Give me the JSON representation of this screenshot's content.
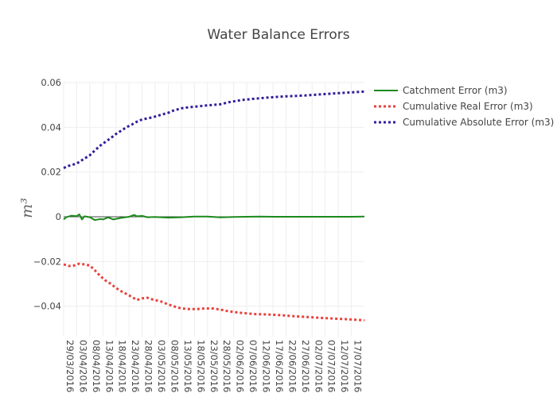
{
  "chart_data": {
    "type": "line",
    "title": "Water Balance Errors",
    "xlabel": "",
    "ylabel": "m³",
    "ylim": [
      -0.05,
      0.06
    ],
    "yticks": [
      -0.04,
      -0.02,
      0,
      0.02,
      0.04,
      0.06
    ],
    "ytick_labels": [
      "−0.04",
      "−0.02",
      "0",
      "0.02",
      "0.04",
      "0.06"
    ],
    "x_start": "2016-03-29",
    "x_end": "2016-07-22",
    "xticks": [
      "2016-03-29",
      "2016-04-03",
      "2016-04-08",
      "2016-04-13",
      "2016-04-18",
      "2016-04-23",
      "2016-04-28",
      "2016-05-03",
      "2016-05-08",
      "2016-05-13",
      "2016-05-18",
      "2016-05-23",
      "2016-05-28",
      "2016-06-02",
      "2016-06-07",
      "2016-06-12",
      "2016-06-17",
      "2016-06-22",
      "2016-06-27",
      "2016-07-02",
      "2016-07-07",
      "2016-07-12",
      "2016-07-17"
    ],
    "xtick_labels": [
      "29/03/2016",
      "03/04/2016",
      "08/04/2016",
      "13/04/2016",
      "18/04/2016",
      "23/04/2016",
      "28/04/2016",
      "03/05/2016",
      "08/05/2016",
      "13/05/2016",
      "18/05/2016",
      "23/05/2016",
      "28/05/2016",
      "02/06/2016",
      "07/06/2016",
      "12/06/2016",
      "17/06/2016",
      "22/06/2016",
      "27/06/2016",
      "02/07/2016",
      "07/07/2016",
      "12/07/2016",
      "17/07/2016"
    ],
    "grid": true,
    "legend_position": "top-right",
    "series": [
      {
        "name": "Catchment Error (m3)",
        "color": "#1b8a1b",
        "dash": "solid",
        "x": [
          "2016-03-29",
          "2016-03-30",
          "2016-04-01",
          "2016-04-03",
          "2016-04-04",
          "2016-04-05",
          "2016-04-06",
          "2016-04-08",
          "2016-04-10",
          "2016-04-12",
          "2016-04-13",
          "2016-04-15",
          "2016-04-17",
          "2016-04-20",
          "2016-04-23",
          "2016-04-25",
          "2016-04-26",
          "2016-04-28",
          "2016-04-30",
          "2016-05-03",
          "2016-05-08",
          "2016-05-13",
          "2016-05-18",
          "2016-05-23",
          "2016-05-28",
          "2016-06-02",
          "2016-06-07",
          "2016-06-12",
          "2016-06-17",
          "2016-06-22",
          "2016-06-27",
          "2016-07-02",
          "2016-07-07",
          "2016-07-12",
          "2016-07-17",
          "2016-07-22"
        ],
        "y": [
          -0.0012,
          -0.0002,
          0.0005,
          0.0003,
          0.0011,
          -0.0012,
          0.0002,
          -0.0002,
          -0.0015,
          -0.001,
          -0.0012,
          -0.0003,
          -0.0012,
          -0.0005,
          0.0,
          0.0008,
          0.0002,
          0.0004,
          -0.0002,
          -0.0001,
          -0.0004,
          -0.0002,
          0.0001,
          0.0001,
          -0.0003,
          -0.0001,
          0.0,
          0.0001,
          0.0,
          0.0,
          0.0,
          0.0,
          0.0,
          0.0,
          0.0,
          0.0001
        ]
      },
      {
        "name": "Cumulative Real Error (m3)",
        "color": "#e8423c",
        "dash": "dot",
        "x": [
          "2016-03-29",
          "2016-03-31",
          "2016-04-02",
          "2016-04-04",
          "2016-04-06",
          "2016-04-08",
          "2016-04-10",
          "2016-04-12",
          "2016-04-14",
          "2016-04-16",
          "2016-04-18",
          "2016-04-20",
          "2016-04-22",
          "2016-04-24",
          "2016-04-26",
          "2016-04-28",
          "2016-04-30",
          "2016-05-02",
          "2016-05-05",
          "2016-05-08",
          "2016-05-10",
          "2016-05-13",
          "2016-05-16",
          "2016-05-19",
          "2016-05-22",
          "2016-05-25",
          "2016-05-28",
          "2016-05-31",
          "2016-06-05",
          "2016-06-10",
          "2016-06-15",
          "2016-06-20",
          "2016-06-25",
          "2016-06-30",
          "2016-07-05",
          "2016-07-10",
          "2016-07-15",
          "2016-07-22"
        ],
        "y": [
          -0.0213,
          -0.022,
          -0.0218,
          -0.021,
          -0.0213,
          -0.0218,
          -0.024,
          -0.0265,
          -0.0285,
          -0.03,
          -0.0318,
          -0.0333,
          -0.0345,
          -0.0358,
          -0.0372,
          -0.0365,
          -0.0362,
          -0.037,
          -0.0378,
          -0.0392,
          -0.04,
          -0.041,
          -0.0413,
          -0.0413,
          -0.041,
          -0.041,
          -0.0415,
          -0.0423,
          -0.043,
          -0.0435,
          -0.0437,
          -0.044,
          -0.0445,
          -0.0448,
          -0.0452,
          -0.0455,
          -0.0458,
          -0.0463
        ]
      },
      {
        "name": "Cumulative Absolute Error (m3)",
        "color": "#2f1f99",
        "dash": "dot",
        "x": [
          "2016-03-29",
          "2016-03-31",
          "2016-04-03",
          "2016-04-05",
          "2016-04-08",
          "2016-04-10",
          "2016-04-12",
          "2016-04-14",
          "2016-04-16",
          "2016-04-18",
          "2016-04-20",
          "2016-04-22",
          "2016-04-24",
          "2016-04-26",
          "2016-04-28",
          "2016-04-30",
          "2016-05-02",
          "2016-05-05",
          "2016-05-08",
          "2016-05-10",
          "2016-05-13",
          "2016-05-16",
          "2016-05-19",
          "2016-05-22",
          "2016-05-25",
          "2016-05-28",
          "2016-05-31",
          "2016-06-05",
          "2016-06-10",
          "2016-06-15",
          "2016-06-20",
          "2016-06-25",
          "2016-06-30",
          "2016-07-05",
          "2016-07-10",
          "2016-07-15",
          "2016-07-22"
        ],
        "y": [
          0.0218,
          0.0228,
          0.0238,
          0.0253,
          0.0275,
          0.0297,
          0.0318,
          0.0335,
          0.0352,
          0.037,
          0.0385,
          0.04,
          0.0412,
          0.0425,
          0.0435,
          0.044,
          0.0445,
          0.0455,
          0.0465,
          0.0475,
          0.0485,
          0.049,
          0.0493,
          0.0497,
          0.05,
          0.0503,
          0.0512,
          0.0522,
          0.0528,
          0.0533,
          0.0537,
          0.054,
          0.0543,
          0.0547,
          0.0551,
          0.0555,
          0.056
        ]
      }
    ]
  }
}
